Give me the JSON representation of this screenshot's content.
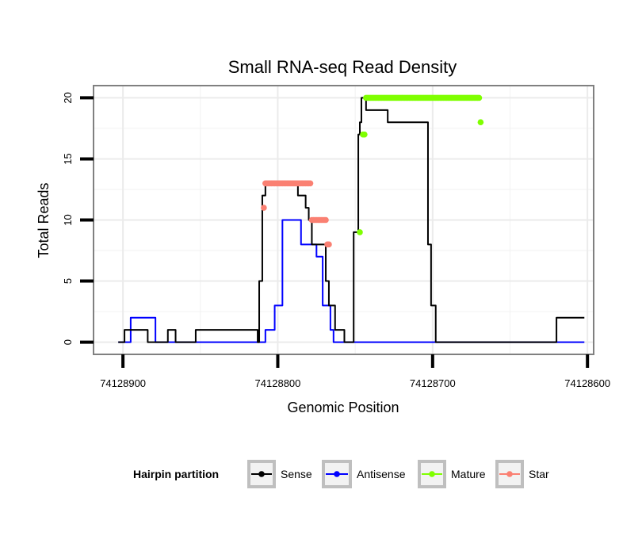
{
  "chart_data": {
    "type": "line",
    "title": "Small RNA-seq Read Density",
    "xlabel": "Genomic Position",
    "ylabel": "Total Reads",
    "xlim": [
      74128919,
      74128596
    ],
    "x_reversed": true,
    "ylim": [
      -1,
      21
    ],
    "x_ticks": [
      74128900,
      74128800,
      74128700,
      74128600
    ],
    "x_tick_labels": [
      "74128900",
      "74128800",
      "74128700",
      "74128600"
    ],
    "y_ticks": [
      0,
      5,
      10,
      15,
      20
    ],
    "y_tick_labels": [
      "0",
      "5",
      "10",
      "15",
      "20"
    ],
    "grid": true,
    "legend": {
      "title": "Hairpin partition",
      "position": "bottom",
      "entries": [
        {
          "name": "Sense",
          "color": "#000000"
        },
        {
          "name": "Antisense",
          "color": "#0000ff"
        },
        {
          "name": "Mature",
          "color": "#7fff00"
        },
        {
          "name": "Star",
          "color": "#fa8072"
        }
      ]
    },
    "series": [
      {
        "name": "Sense",
        "color": "#000000",
        "x": [
          74128903,
          74128899,
          74128899,
          74128884,
          74128884,
          74128871,
          74128871,
          74128866,
          74128866,
          74128853,
          74128853,
          74128813,
          74128813,
          74128812,
          74128812,
          74128810,
          74128810,
          74128808,
          74128808,
          74128787,
          74128787,
          74128782,
          74128782,
          74128780,
          74128780,
          74128778,
          74128778,
          74128769,
          74128769,
          74128767,
          74128767,
          74128763,
          74128763,
          74128757,
          74128757,
          74128751,
          74128751,
          74128748,
          74128748,
          74128747,
          74128747,
          74128746,
          74128746,
          74128743,
          74128743,
          74128729,
          74128729,
          74128703,
          74128703,
          74128701,
          74128701,
          74128698,
          74128698,
          74128620,
          74128620,
          74128602
        ],
        "y": [
          0,
          0,
          1,
          1,
          0,
          0,
          1,
          1,
          0,
          0,
          1,
          1,
          0,
          0,
          5,
          5,
          12,
          12,
          13,
          13,
          12,
          12,
          11,
          11,
          10,
          10,
          8,
          8,
          5,
          5,
          3,
          3,
          1,
          1,
          0,
          0,
          9,
          9,
          17,
          17,
          18,
          18,
          20,
          20,
          19,
          19,
          18,
          18,
          8,
          8,
          3,
          3,
          0,
          0,
          2,
          2
        ]
      },
      {
        "name": "Antisense",
        "color": "#0000ff",
        "x": [
          74128903,
          74128895,
          74128895,
          74128879,
          74128879,
          74128870,
          74128870,
          74128859,
          74128859,
          74128808,
          74128808,
          74128802,
          74128802,
          74128797,
          74128797,
          74128785,
          74128785,
          74128783,
          74128783,
          74128775,
          74128775,
          74128771,
          74128771,
          74128766,
          74128766,
          74128764,
          74128764,
          74128749,
          74128749,
          74128602
        ],
        "y": [
          0,
          0,
          2,
          2,
          0,
          0,
          0,
          0,
          0,
          0,
          1,
          1,
          3,
          3,
          10,
          10,
          8,
          8,
          8,
          8,
          7,
          7,
          3,
          3,
          1,
          1,
          0,
          0,
          0,
          0
        ]
      },
      {
        "name": "Mature",
        "color": "#7fff00",
        "x": [
          74128747,
          74128745,
          74128744,
          74128743,
          74128742,
          74128741,
          74128740,
          74128739,
          74128738,
          74128737,
          74128736,
          74128735,
          74128734,
          74128733,
          74128732,
          74128731,
          74128730,
          74128729,
          74128728,
          74128727,
          74128726,
          74128725,
          74128724,
          74128723,
          74128722,
          74128721,
          74128720,
          74128719,
          74128718,
          74128717,
          74128716,
          74128715,
          74128714,
          74128713,
          74128712,
          74128711,
          74128710,
          74128709,
          74128708,
          74128707,
          74128706,
          74128705,
          74128704,
          74128703,
          74128702,
          74128701,
          74128700,
          74128699,
          74128698,
          74128697,
          74128696,
          74128695,
          74128694,
          74128693,
          74128692,
          74128691,
          74128690,
          74128689,
          74128688,
          74128687,
          74128686,
          74128685,
          74128684,
          74128683,
          74128682,
          74128681,
          74128680,
          74128679,
          74128678,
          74128677,
          74128676,
          74128675,
          74128674,
          74128673,
          74128672,
          74128671,
          74128670,
          74128669
        ],
        "y": [
          9,
          17,
          17,
          20,
          20,
          20,
          20,
          20,
          20,
          20,
          20,
          20,
          20,
          20,
          20,
          20,
          20,
          20,
          20,
          20,
          20,
          20,
          20,
          20,
          20,
          20,
          20,
          20,
          20,
          20,
          20,
          20,
          20,
          20,
          20,
          20,
          20,
          20,
          20,
          20,
          20,
          20,
          20,
          20,
          20,
          20,
          20,
          20,
          20,
          20,
          20,
          20,
          20,
          20,
          20,
          20,
          20,
          20,
          20,
          20,
          20,
          20,
          20,
          20,
          20,
          20,
          20,
          20,
          20,
          20,
          20,
          20,
          20,
          20,
          20,
          20,
          20,
          18
        ]
      },
      {
        "name": "Star",
        "color": "#fa8072",
        "x": [
          74128809,
          74128808,
          74128807,
          74128806,
          74128805,
          74128804,
          74128803,
          74128802,
          74128801,
          74128800,
          74128799,
          74128798,
          74128797,
          74128796,
          74128795,
          74128794,
          74128793,
          74128792,
          74128791,
          74128790,
          74128789,
          74128788,
          74128787,
          74128786,
          74128785,
          74128784,
          74128783,
          74128782,
          74128781,
          74128780,
          74128779,
          74128778,
          74128777,
          74128776,
          74128775,
          74128774,
          74128773,
          74128772,
          74128771,
          74128770,
          74128769,
          74128768,
          74128767
        ],
        "y": [
          11,
          13,
          13,
          13,
          13,
          13,
          13,
          13,
          13,
          13,
          13,
          13,
          13,
          13,
          13,
          13,
          13,
          13,
          13,
          13,
          13,
          13,
          13,
          13,
          13,
          13,
          13,
          13,
          13,
          13,
          13,
          10,
          10,
          10,
          10,
          10,
          10,
          10,
          10,
          10,
          10,
          8,
          8
        ]
      }
    ]
  }
}
